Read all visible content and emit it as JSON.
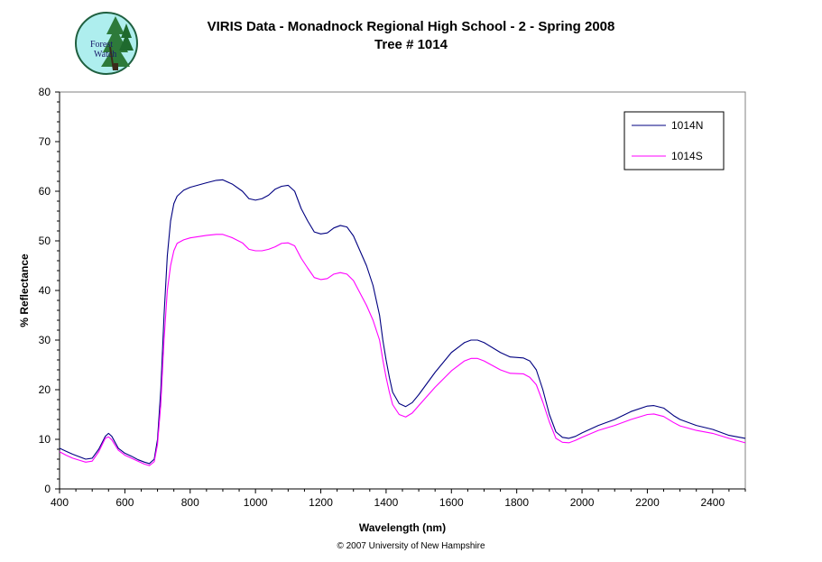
{
  "logo": {
    "text_line1": "Forest",
    "text_line2": "Watch"
  },
  "copyright": "© 2007 University of New Hampshire",
  "chart_data": {
    "type": "line",
    "title": "VIRIS Data - Monadnock Regional High School - 2 - Spring 2008",
    "subtitle": "Tree # 1014",
    "xlabel": "Wavelength (nm)",
    "ylabel": "% Reflectance",
    "xlim": [
      400,
      2500
    ],
    "ylim": [
      0,
      80
    ],
    "xticks": [
      400,
      600,
      800,
      1000,
      1200,
      1400,
      1600,
      1800,
      2000,
      2200,
      2400
    ],
    "yticks": [
      0,
      10,
      20,
      30,
      40,
      50,
      60,
      70,
      80
    ],
    "grid": false,
    "legend_position": "top-right",
    "series": [
      {
        "name": "1014N",
        "color": "#000080",
        "points": [
          [
            400,
            8.2
          ],
          [
            420,
            7.6
          ],
          [
            440,
            7.0
          ],
          [
            460,
            6.5
          ],
          [
            480,
            6.0
          ],
          [
            500,
            6.2
          ],
          [
            520,
            8.0
          ],
          [
            540,
            10.6
          ],
          [
            550,
            11.2
          ],
          [
            560,
            10.6
          ],
          [
            580,
            8.2
          ],
          [
            600,
            7.2
          ],
          [
            620,
            6.6
          ],
          [
            640,
            5.9
          ],
          [
            660,
            5.4
          ],
          [
            675,
            5.1
          ],
          [
            690,
            6.0
          ],
          [
            700,
            10.0
          ],
          [
            710,
            20.0
          ],
          [
            720,
            35.0
          ],
          [
            730,
            47.0
          ],
          [
            740,
            54.0
          ],
          [
            750,
            57.5
          ],
          [
            760,
            59.0
          ],
          [
            780,
            60.2
          ],
          [
            800,
            60.8
          ],
          [
            850,
            61.7
          ],
          [
            880,
            62.2
          ],
          [
            900,
            62.3
          ],
          [
            930,
            61.4
          ],
          [
            960,
            60.0
          ],
          [
            980,
            58.5
          ],
          [
            1000,
            58.2
          ],
          [
            1020,
            58.5
          ],
          [
            1040,
            59.2
          ],
          [
            1060,
            60.4
          ],
          [
            1080,
            61.0
          ],
          [
            1100,
            61.2
          ],
          [
            1120,
            60.0
          ],
          [
            1140,
            56.5
          ],
          [
            1160,
            54.0
          ],
          [
            1180,
            51.8
          ],
          [
            1200,
            51.4
          ],
          [
            1220,
            51.6
          ],
          [
            1240,
            52.6
          ],
          [
            1260,
            53.1
          ],
          [
            1280,
            52.8
          ],
          [
            1300,
            51.0
          ],
          [
            1320,
            48.0
          ],
          [
            1340,
            45.0
          ],
          [
            1360,
            41.0
          ],
          [
            1380,
            35.0
          ],
          [
            1390,
            30.0
          ],
          [
            1400,
            26.0
          ],
          [
            1410,
            22.5
          ],
          [
            1420,
            19.5
          ],
          [
            1440,
            17.2
          ],
          [
            1460,
            16.6
          ],
          [
            1480,
            17.4
          ],
          [
            1500,
            19.0
          ],
          [
            1550,
            23.5
          ],
          [
            1600,
            27.5
          ],
          [
            1640,
            29.5
          ],
          [
            1660,
            30.0
          ],
          [
            1680,
            30.0
          ],
          [
            1700,
            29.5
          ],
          [
            1750,
            27.5
          ],
          [
            1780,
            26.6
          ],
          [
            1820,
            26.4
          ],
          [
            1840,
            25.8
          ],
          [
            1860,
            24.0
          ],
          [
            1880,
            20.0
          ],
          [
            1900,
            15.0
          ],
          [
            1920,
            11.5
          ],
          [
            1940,
            10.4
          ],
          [
            1960,
            10.2
          ],
          [
            1980,
            10.6
          ],
          [
            2000,
            11.3
          ],
          [
            2050,
            12.8
          ],
          [
            2100,
            14.0
          ],
          [
            2150,
            15.6
          ],
          [
            2200,
            16.7
          ],
          [
            2220,
            16.8
          ],
          [
            2250,
            16.3
          ],
          [
            2280,
            14.8
          ],
          [
            2300,
            14.0
          ],
          [
            2350,
            12.8
          ],
          [
            2400,
            12.0
          ],
          [
            2450,
            10.8
          ],
          [
            2500,
            10.2
          ]
        ]
      },
      {
        "name": "1014S",
        "color": "#FF00FF",
        "points": [
          [
            400,
            7.5
          ],
          [
            420,
            6.8
          ],
          [
            440,
            6.2
          ],
          [
            460,
            5.8
          ],
          [
            480,
            5.4
          ],
          [
            500,
            5.6
          ],
          [
            520,
            7.5
          ],
          [
            540,
            10.2
          ],
          [
            550,
            10.5
          ],
          [
            560,
            9.9
          ],
          [
            580,
            7.8
          ],
          [
            600,
            6.8
          ],
          [
            620,
            6.2
          ],
          [
            640,
            5.6
          ],
          [
            660,
            5.0
          ],
          [
            675,
            4.7
          ],
          [
            690,
            5.5
          ],
          [
            700,
            9.0
          ],
          [
            710,
            17.0
          ],
          [
            720,
            30.0
          ],
          [
            730,
            40.0
          ],
          [
            740,
            45.0
          ],
          [
            750,
            48.0
          ],
          [
            760,
            49.5
          ],
          [
            780,
            50.2
          ],
          [
            800,
            50.6
          ],
          [
            850,
            51.1
          ],
          [
            880,
            51.3
          ],
          [
            900,
            51.3
          ],
          [
            930,
            50.6
          ],
          [
            960,
            49.6
          ],
          [
            980,
            48.3
          ],
          [
            1000,
            48.0
          ],
          [
            1020,
            48.0
          ],
          [
            1040,
            48.3
          ],
          [
            1060,
            48.8
          ],
          [
            1080,
            49.5
          ],
          [
            1100,
            49.6
          ],
          [
            1120,
            49.0
          ],
          [
            1140,
            46.5
          ],
          [
            1160,
            44.5
          ],
          [
            1180,
            42.6
          ],
          [
            1200,
            42.2
          ],
          [
            1220,
            42.4
          ],
          [
            1240,
            43.3
          ],
          [
            1260,
            43.6
          ],
          [
            1280,
            43.3
          ],
          [
            1300,
            42.0
          ],
          [
            1320,
            39.5
          ],
          [
            1340,
            37.0
          ],
          [
            1360,
            34.0
          ],
          [
            1380,
            30.0
          ],
          [
            1390,
            26.0
          ],
          [
            1400,
            22.5
          ],
          [
            1410,
            19.5
          ],
          [
            1420,
            17.0
          ],
          [
            1440,
            15.0
          ],
          [
            1460,
            14.5
          ],
          [
            1480,
            15.3
          ],
          [
            1500,
            16.8
          ],
          [
            1550,
            20.5
          ],
          [
            1600,
            23.8
          ],
          [
            1640,
            25.8
          ],
          [
            1660,
            26.3
          ],
          [
            1680,
            26.3
          ],
          [
            1700,
            25.8
          ],
          [
            1750,
            24.0
          ],
          [
            1780,
            23.3
          ],
          [
            1820,
            23.2
          ],
          [
            1840,
            22.5
          ],
          [
            1860,
            21.0
          ],
          [
            1880,
            17.5
          ],
          [
            1900,
            13.5
          ],
          [
            1920,
            10.2
          ],
          [
            1940,
            9.4
          ],
          [
            1960,
            9.3
          ],
          [
            1980,
            9.8
          ],
          [
            2000,
            10.4
          ],
          [
            2050,
            11.8
          ],
          [
            2100,
            12.8
          ],
          [
            2150,
            14.0
          ],
          [
            2200,
            15.0
          ],
          [
            2220,
            15.1
          ],
          [
            2250,
            14.6
          ],
          [
            2280,
            13.4
          ],
          [
            2300,
            12.7
          ],
          [
            2350,
            11.8
          ],
          [
            2400,
            11.2
          ],
          [
            2450,
            10.2
          ],
          [
            2500,
            9.3
          ]
        ]
      }
    ]
  }
}
